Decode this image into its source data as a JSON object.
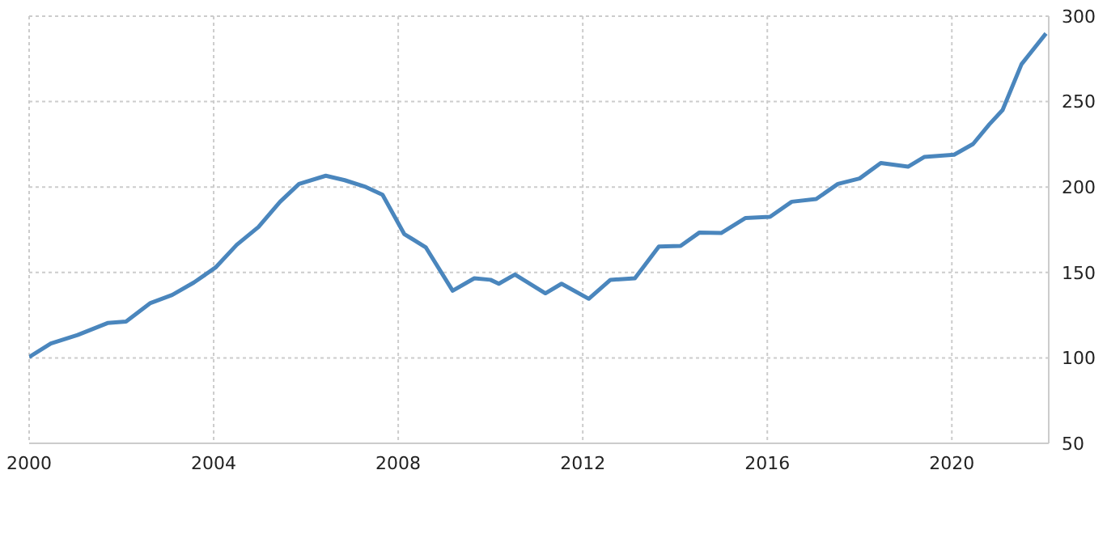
{
  "chart_data": {
    "type": "line",
    "x": [
      2000.0,
      2000.47,
      2001.05,
      2001.7,
      2002.1,
      2002.63,
      2003.1,
      2003.57,
      2004.04,
      2004.5,
      2004.97,
      2005.44,
      2005.85,
      2006.43,
      2006.84,
      2007.3,
      2007.66,
      2008.13,
      2008.6,
      2009.18,
      2009.65,
      2010.0,
      2010.18,
      2010.53,
      2011.19,
      2011.54,
      2012.13,
      2012.6,
      2013.13,
      2013.65,
      2014.12,
      2014.53,
      2015.0,
      2015.53,
      2016.06,
      2016.53,
      2017.06,
      2017.53,
      2018.0,
      2018.46,
      2019.05,
      2019.4,
      2020.05,
      2020.46,
      2020.81,
      2021.1,
      2021.51,
      2022.04
    ],
    "series": [
      {
        "color": "#4a86bd",
        "values": [
          100.5,
          108.4,
          113.4,
          120.4,
          121.3,
          132.1,
          136.8,
          144.1,
          152.9,
          166.2,
          176.6,
          191.4,
          201.8,
          206.6,
          204.0,
          200.0,
          195.5,
          172.5,
          164.6,
          139.3,
          146.6,
          145.7,
          143.4,
          148.8,
          137.8,
          143.4,
          134.6,
          145.7,
          146.6,
          165.2,
          165.5,
          173.4,
          173.1,
          181.9,
          182.6,
          191.4,
          193.0,
          201.8,
          205.0,
          214.1,
          211.9,
          217.6,
          218.9,
          225.2,
          236.6,
          245.1,
          271.9,
          289.9
        ]
      }
    ],
    "xlim": [
      2000,
      2022.1
    ],
    "xticks": [
      2000,
      2004,
      2008,
      2012,
      2016,
      2020
    ],
    "ylim": [
      50,
      300
    ],
    "yticks": [
      50,
      100,
      150,
      200,
      250,
      300
    ],
    "grid": true,
    "legend": false,
    "marker": "none",
    "line_style": "solid"
  }
}
